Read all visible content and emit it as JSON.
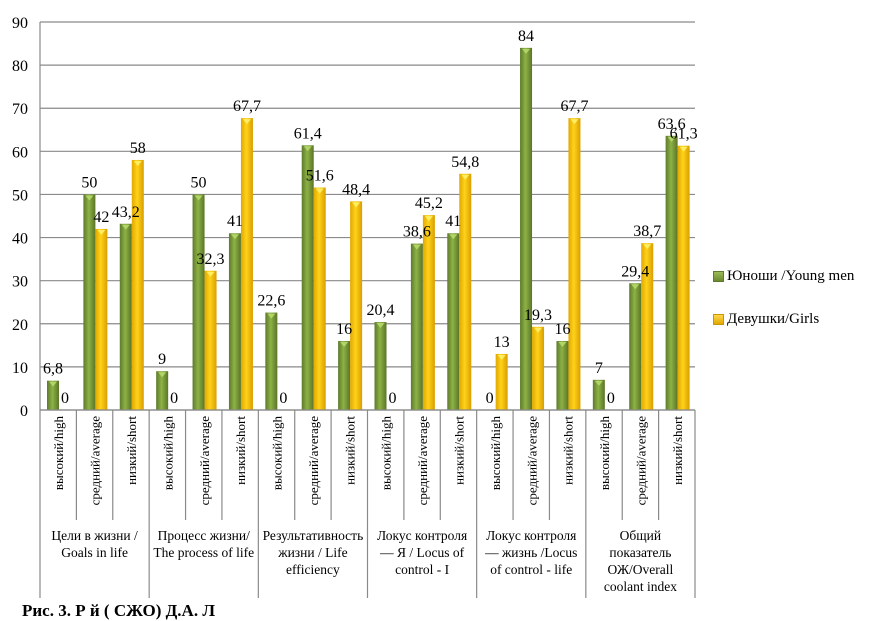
{
  "chart_data": {
    "type": "bar",
    "title": "",
    "xlabel": "",
    "ylabel": "",
    "ylim": [
      0,
      90
    ],
    "yticks": [
      "0",
      "10",
      "20",
      "30",
      "40",
      "50",
      "60",
      "70",
      "80",
      "90"
    ],
    "grid": true,
    "legend_position": "right",
    "groups": [
      {
        "label": "Цели в жизни / Goals in life",
        "lines": [
          "Цели в жизни /",
          "Goals in life"
        ]
      },
      {
        "label": "Процесс жизни/ The process of life",
        "lines": [
          "Процесс жизни/",
          "The process of life"
        ]
      },
      {
        "label": "Результативность жизни / Life efficiency",
        "lines": [
          "Результативность",
          "жизни / Life",
          "efficiency"
        ]
      },
      {
        "label": "Локус контроля — Я / Locus of control - I",
        "lines": [
          "Локус контроля",
          "— Я / Locus of",
          "control - I"
        ]
      },
      {
        "label": "Локус контроля — жизнь /Locus of control - life",
        "lines": [
          "Локус контроля",
          "— жизнь /Locus",
          "of control - life"
        ]
      },
      {
        "label": "Общий показатель ОЖ/Overall coolant index",
        "lines": [
          "Общий",
          "показатель",
          "ОЖ/Overall",
          "coolant index"
        ]
      }
    ],
    "subcategories": [
      "высокий/high",
      "средний/average",
      "низкий/short"
    ],
    "categories": [
      "высокий/high",
      "средний/average",
      "низкий/short",
      "высокий/high",
      "средний/average",
      "низкий/short",
      "высокий/high",
      "средний/average",
      "низкий/short",
      "высокий/high",
      "средний/average",
      "низкий/short",
      "высокий/high",
      "средний/average",
      "низкий/short",
      "высокий/high",
      "средний/average",
      "низкий/short"
    ],
    "series": [
      {
        "name": "Юноши /Young men",
        "legend_lines": [
          "Юноши /Young",
          "men"
        ],
        "color": "#77933C",
        "values": [
          6.8,
          50,
          43.2,
          9,
          50,
          41,
          22.6,
          61.4,
          16,
          20.4,
          38.6,
          41,
          0,
          84,
          16,
          7,
          29.4,
          63.6
        ],
        "labels": [
          "6,8",
          "50",
          "43,2",
          "9",
          "50",
          "41",
          "22,6",
          "61,4",
          "16",
          "20,4",
          "38,6",
          "41",
          "0",
          "84",
          "16",
          "7",
          "29,4",
          "63,6"
        ]
      },
      {
        "name": "Девушки/Girls",
        "legend_lines": [
          "Девушки/Girls"
        ],
        "color": "#FFC000",
        "values": [
          0,
          42,
          58,
          0,
          32.3,
          67.7,
          0,
          51.6,
          48.4,
          0,
          45.2,
          54.8,
          13,
          19.3,
          67.7,
          0,
          38.7,
          61.3
        ],
        "labels": [
          "0",
          "42",
          "58",
          "0",
          "32,3",
          "67,7",
          "0",
          "51,6",
          "48,4",
          "0",
          "45,2",
          "54,8",
          "13",
          "19,3",
          "67,7",
          "0",
          "38,7",
          "61,3"
        ]
      }
    ]
  },
  "caption": {
    "visible_text": "Рис. 3. Р                                                                   й (                 СЖО) Д.А. Л"
  }
}
